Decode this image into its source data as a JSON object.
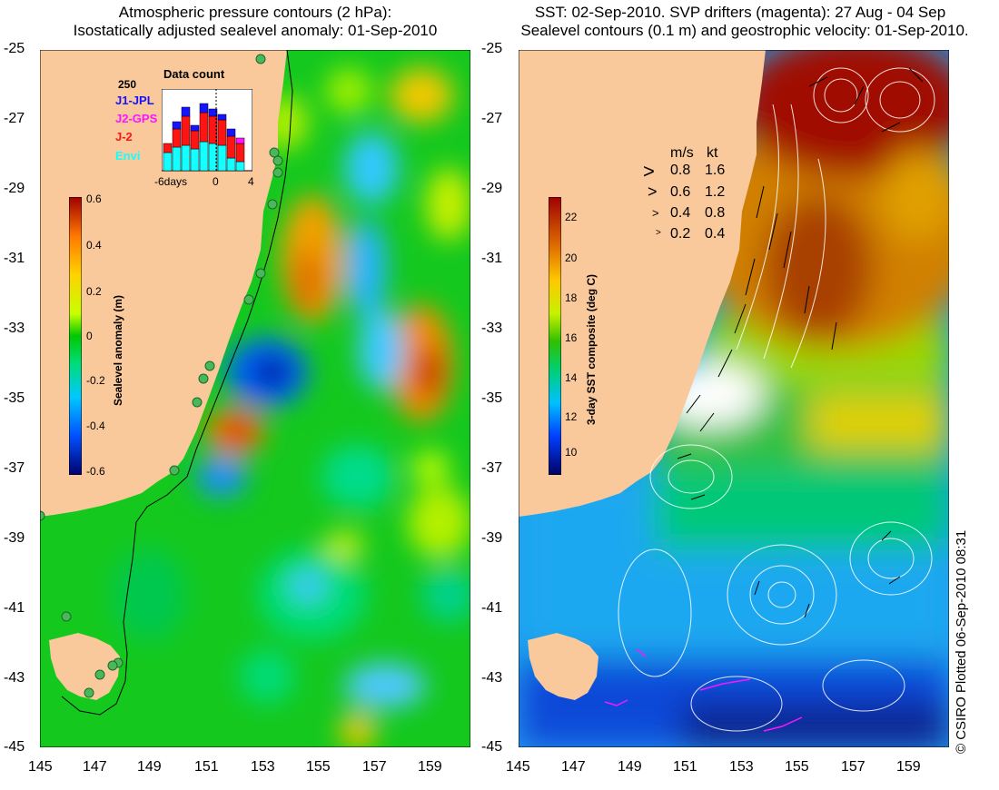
{
  "left_panel": {
    "title_line1": "Atmospheric pressure contours (2 hPa):",
    "title_line2": "Isostatically adjusted sealevel anomaly: 01-Sep-2010",
    "y_ticks": [
      "-25",
      "-27",
      "-29",
      "-31",
      "-33",
      "-35",
      "-37",
      "-39",
      "-41",
      "-43",
      "-45"
    ],
    "x_ticks": [
      "145",
      "147",
      "149",
      "151",
      "153",
      "155",
      "157",
      "159"
    ],
    "colorbar": {
      "title": "Sealevel anomaly (m)",
      "ticks": [
        "0.6",
        "0.4",
        "0.2",
        "0",
        "-0.2",
        "-0.4",
        "-0.6"
      ]
    },
    "inset": {
      "title": "Data count",
      "ymax": "250",
      "missions": [
        {
          "name": "J1-JPL",
          "color": "#1414ff"
        },
        {
          "name": "J2-GPS",
          "color": "#ff14ff"
        },
        {
          "name": "J-2",
          "color": "#ff1414"
        },
        {
          "name": "Envi",
          "color": "#14ffff"
        }
      ],
      "x_labels": [
        "-6days",
        "0",
        "4"
      ]
    }
  },
  "right_panel": {
    "title_line1": "SST: 02-Sep-2010. SVP drifters (magenta): 27 Aug - 04 Sep",
    "title_line2": "Sealevel contours (0.1 m) and geostrophic velocity: 01-Sep-2010.",
    "y_ticks": [
      "-25",
      "-27",
      "-29",
      "-31",
      "-33",
      "-35",
      "-37",
      "-39",
      "-41",
      "-43",
      "-45"
    ],
    "x_ticks": [
      "145",
      "147",
      "149",
      "151",
      "153",
      "155",
      "157",
      "159"
    ],
    "colorbar": {
      "title": "3-day SST composite (deg C)",
      "ticks": [
        "22",
        "20",
        "18",
        "16",
        "14",
        "12",
        "10"
      ]
    },
    "speed_legend": {
      "header_ms": "m/s",
      "header_kt": "kt",
      "rows": [
        {
          "ms": "0.8",
          "kt": "1.6"
        },
        {
          "ms": "0.6",
          "kt": "1.2"
        },
        {
          "ms": "0.4",
          "kt": "0.8"
        },
        {
          "ms": "0.2",
          "kt": "0.4"
        }
      ]
    }
  },
  "credit": "© CSIRO Plotted 06-Sep-2010 08:31",
  "colors": {
    "land": "#f9c89b",
    "sla_scale": [
      "#00006e",
      "#0050ff",
      "#00c8ff",
      "#00dc78",
      "#00c800",
      "#c8ff00",
      "#ffd200",
      "#ff7800",
      "#a00000"
    ],
    "sst_scale": [
      "#000064",
      "#0040ff",
      "#00c0ff",
      "#00d070",
      "#30c000",
      "#c8f000",
      "#ffc800",
      "#e07000",
      "#a00000"
    ]
  }
}
